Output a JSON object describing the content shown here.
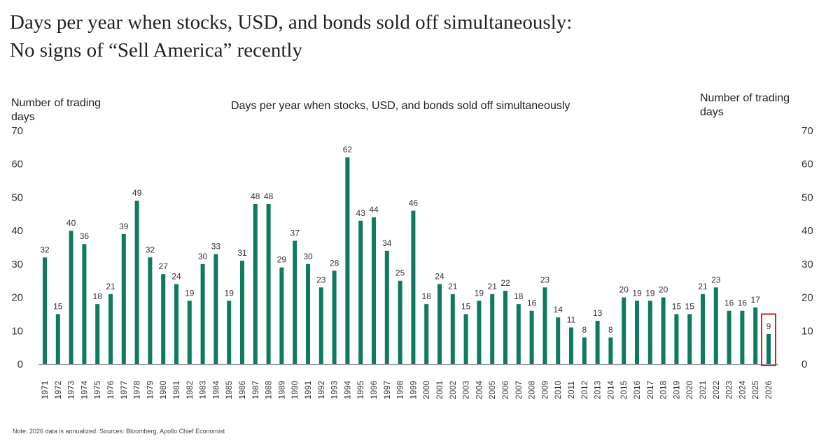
{
  "title_line1": "Days per year when stocks, USD, and bonds sold off simultaneously:",
  "title_line2": "No signs of “Sell America” recently",
  "note": "Note: 2026 data is annualized. Sources: Bloomberg, Apollo Chief Economist",
  "chart_data": {
    "type": "bar",
    "title": "Days per year when stocks, USD, and bonds sold off simultaneously",
    "ylabel_left": "Number of trading days",
    "ylabel_right": "Number of trading days",
    "ylim": [
      0,
      70
    ],
    "yticks": [
      0,
      10,
      20,
      30,
      40,
      50,
      60,
      70
    ],
    "grid": false,
    "bar_color": "#0e7b60",
    "highlight_color": "#e02020",
    "highlight_category": "2026",
    "categories": [
      "1971",
      "1972",
      "1973",
      "1974",
      "1975",
      "1976",
      "1977",
      "1978",
      "1979",
      "1980",
      "1981",
      "1982",
      "1983",
      "1984",
      "1985",
      "1986",
      "1987",
      "1988",
      "1989",
      "1990",
      "1991",
      "1992",
      "1993",
      "1994",
      "1995",
      "1996",
      "1997",
      "1998",
      "1999",
      "2000",
      "2001",
      "2002",
      "2003",
      "2004",
      "2005",
      "2006",
      "2007",
      "2008",
      "2009",
      "2010",
      "2011",
      "2012",
      "2013",
      "2014",
      "2015",
      "2016",
      "2017",
      "2018",
      "2019",
      "2020",
      "2021",
      "2022",
      "2023",
      "2024",
      "2025",
      "2026"
    ],
    "values": [
      32,
      15,
      40,
      36,
      18,
      21,
      39,
      49,
      32,
      27,
      24,
      19,
      30,
      33,
      19,
      31,
      48,
      48,
      29,
      37,
      30,
      23,
      28,
      62,
      43,
      44,
      34,
      25,
      46,
      18,
      24,
      21,
      15,
      19,
      21,
      22,
      18,
      16,
      23,
      14,
      11,
      8,
      13,
      8,
      20,
      19,
      19,
      20,
      15,
      15,
      21,
      23,
      16,
      16,
      17,
      9
    ]
  }
}
